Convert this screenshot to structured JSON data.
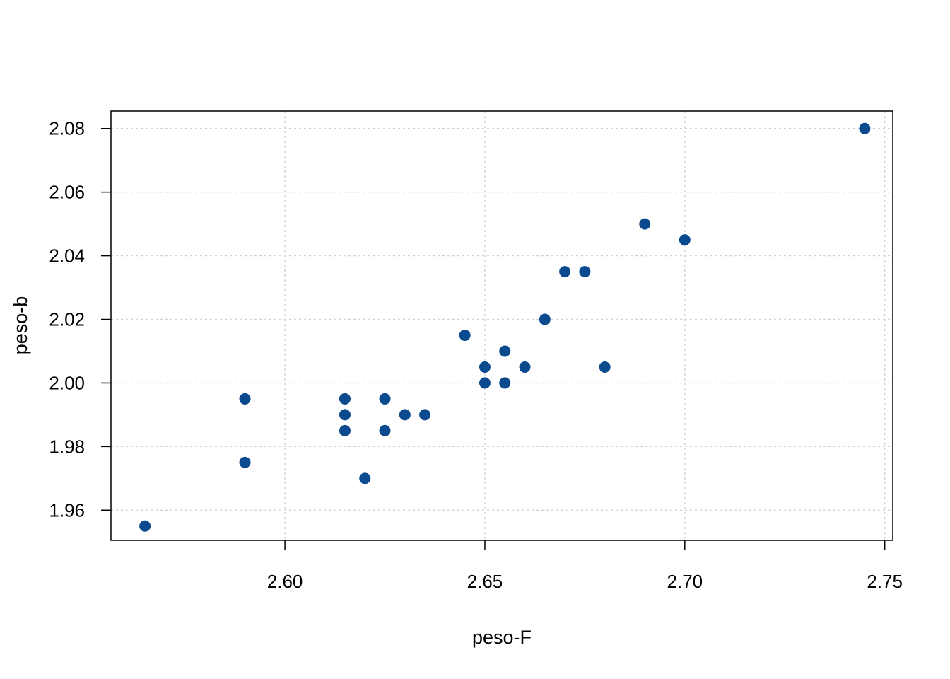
{
  "chart_data": {
    "type": "scatter",
    "xlabel": "peso-F",
    "ylabel": "peso-b",
    "xlim": [
      2.5565,
      2.752
    ],
    "ylim": [
      1.9505,
      2.0855
    ],
    "xticks": [
      2.6,
      2.65,
      2.7,
      2.75
    ],
    "xtick_labels": [
      "2.60",
      "2.65",
      "2.70",
      "2.75"
    ],
    "yticks": [
      1.96,
      1.98,
      2.0,
      2.02,
      2.04,
      2.06,
      2.08
    ],
    "ytick_labels": [
      "1.96",
      "1.98",
      "2.00",
      "2.02",
      "2.04",
      "2.06",
      "2.08"
    ],
    "grid": true,
    "point_color": "#0b4a8f",
    "points": [
      {
        "x": 2.565,
        "y": 1.955
      },
      {
        "x": 2.59,
        "y": 1.995
      },
      {
        "x": 2.59,
        "y": 1.975
      },
      {
        "x": 2.615,
        "y": 1.995
      },
      {
        "x": 2.615,
        "y": 1.99
      },
      {
        "x": 2.615,
        "y": 1.985
      },
      {
        "x": 2.62,
        "y": 1.97
      },
      {
        "x": 2.625,
        "y": 1.995
      },
      {
        "x": 2.625,
        "y": 1.985
      },
      {
        "x": 2.63,
        "y": 1.99
      },
      {
        "x": 2.635,
        "y": 1.99
      },
      {
        "x": 2.645,
        "y": 2.015
      },
      {
        "x": 2.65,
        "y": 2.005
      },
      {
        "x": 2.65,
        "y": 2.0
      },
      {
        "x": 2.655,
        "y": 2.01
      },
      {
        "x": 2.655,
        "y": 2.0
      },
      {
        "x": 2.66,
        "y": 2.005
      },
      {
        "x": 2.665,
        "y": 2.02
      },
      {
        "x": 2.67,
        "y": 2.035
      },
      {
        "x": 2.675,
        "y": 2.035
      },
      {
        "x": 2.68,
        "y": 2.005
      },
      {
        "x": 2.69,
        "y": 2.05
      },
      {
        "x": 2.7,
        "y": 2.045
      },
      {
        "x": 2.745,
        "y": 2.08
      }
    ]
  }
}
